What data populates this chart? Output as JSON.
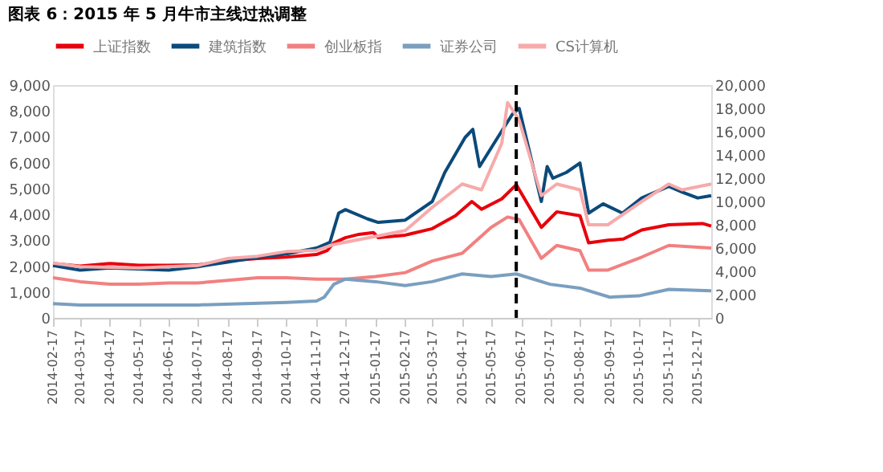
{
  "chart_data": {
    "type": "line",
    "title": "图表 6：2015 年 5 月牛市主线过热调整",
    "ylim": [
      0,
      9000
    ],
    "yticks": [
      0,
      {
        "value": 1000,
        "label": "1,000"
      },
      {
        "value": 2000,
        "label": "2,000"
      },
      {
        "value": 3000,
        "label": "3,000"
      },
      {
        "value": 4000,
        "label": "4,000"
      },
      {
        "value": 5000,
        "label": "5,000"
      },
      {
        "value": 6000,
        "label": "6,000"
      },
      {
        "value": 7000,
        "label": "7,000"
      },
      {
        "value": 8000,
        "label": "8,000"
      },
      {
        "value": 9000,
        "label": "9,000"
      }
    ],
    "y2lim": [
      0,
      20000
    ],
    "y2ticks": [
      0,
      {
        "value": 2000,
        "label": "2,000"
      },
      {
        "value": 4000,
        "label": "4,000"
      },
      {
        "value": 6000,
        "label": "6,000"
      },
      {
        "value": 8000,
        "label": "8,000"
      },
      {
        "value": 10000,
        "label": "10,000"
      },
      {
        "value": 12000,
        "label": "12,000"
      },
      {
        "value": 14000,
        "label": "14,000"
      },
      {
        "value": 16000,
        "label": "16,000"
      },
      {
        "value": 18000,
        "label": "18,000"
      },
      {
        "value": 20000,
        "label": "20,000"
      }
    ],
    "xlim": [
      "2014-02-17",
      "2015-12-31"
    ],
    "xticks": [
      "2014-02-17",
      "2014-03-17",
      "2014-04-17",
      "2014-05-17",
      "2014-06-17",
      "2014-07-17",
      "2014-08-17",
      "2014-09-17",
      "2014-10-17",
      "2014-11-17",
      "2014-12-17",
      "2015-01-17",
      "2015-02-17",
      "2015-03-17",
      "2015-04-17",
      "2015-05-17",
      "2015-06-17",
      "2015-07-17",
      "2015-08-17",
      "2015-09-17",
      "2015-10-17",
      "2015-11-17",
      "2015-12-17"
    ],
    "legend": "top",
    "grid": false,
    "marker": "none",
    "line_style": "solid",
    "ref_lines": [
      {
        "axis": "x",
        "value": "2015-06-12",
        "line_style": "dashed",
        "color": "#000000"
      }
    ],
    "series": [
      {
        "name": "上证指数",
        "color": "#e8000b",
        "x": [
          "2014-02-17",
          "2014-03-17",
          "2014-04-17",
          "2014-05-17",
          "2014-06-17",
          "2014-07-17",
          "2014-08-17",
          "2014-09-17",
          "2014-10-17",
          "2014-11-17",
          "2014-11-28",
          "2014-12-05",
          "2014-12-17",
          "2014-12-31",
          "2015-01-15",
          "2015-01-20",
          "2015-02-17",
          "2015-03-17",
          "2015-04-10",
          "2015-04-27",
          "2015-05-07",
          "2015-05-28",
          "2015-06-12",
          "2015-07-08",
          "2015-07-24",
          "2015-08-17",
          "2015-08-26",
          "2015-09-15",
          "2015-10-01",
          "2015-10-20",
          "2015-11-17",
          "2015-12-22",
          "2015-12-31"
        ],
        "values": [
          2100,
          2000,
          2100,
          2030,
          2030,
          2050,
          2200,
          2300,
          2350,
          2450,
          2600,
          2900,
          3100,
          3230,
          3300,
          3100,
          3200,
          3450,
          3950,
          4500,
          4200,
          4600,
          5150,
          3500,
          4100,
          3950,
          2900,
          3000,
          3050,
          3400,
          3600,
          3650,
          3550
        ]
      },
      {
        "name": "建筑指数",
        "color": "#0b4a7a",
        "axis": "y2",
        "x": [
          "2014-02-17",
          "2014-03-17",
          "2014-04-17",
          "2014-06-17",
          "2014-07-17",
          "2014-08-17",
          "2014-09-17",
          "2014-10-17",
          "2014-11-17",
          "2014-12-01",
          "2014-12-10",
          "2014-12-17",
          "2015-01-09",
          "2015-01-20",
          "2015-02-17",
          "2015-03-17",
          "2015-03-30",
          "2015-04-20",
          "2015-04-28",
          "2015-05-05",
          "2015-05-20",
          "2015-06-08",
          "2015-06-15",
          "2015-07-08",
          "2015-07-14",
          "2015-07-20",
          "2015-08-03",
          "2015-08-17",
          "2015-08-26",
          "2015-09-10",
          "2015-09-30",
          "2015-10-20",
          "2015-11-17",
          "2015-12-01",
          "2015-12-17",
          "2015-12-31"
        ],
        "values": [
          4500,
          4100,
          4300,
          4100,
          4400,
          4800,
          5200,
          5500,
          6000,
          6500,
          9000,
          9300,
          8500,
          8200,
          8400,
          10000,
          12500,
          15500,
          16200,
          13000,
          15000,
          17500,
          18000,
          10000,
          13000,
          12000,
          12500,
          13300,
          9000,
          9800,
          9000,
          10300,
          11300,
          10800,
          10300,
          10500
        ]
      },
      {
        "name": "创业板指",
        "color": "#f28080",
        "x": [
          "2014-02-17",
          "2014-03-17",
          "2014-04-17",
          "2014-05-17",
          "2014-06-17",
          "2014-07-17",
          "2014-08-17",
          "2014-09-17",
          "2014-10-17",
          "2014-11-17",
          "2014-12-17",
          "2015-01-17",
          "2015-02-17",
          "2015-03-17",
          "2015-04-17",
          "2015-05-17",
          "2015-06-03",
          "2015-06-15",
          "2015-07-08",
          "2015-07-24",
          "2015-08-17",
          "2015-08-26",
          "2015-09-15",
          "2015-10-20",
          "2015-11-17",
          "2015-12-31"
        ],
        "values": [
          1550,
          1400,
          1300,
          1300,
          1350,
          1350,
          1450,
          1550,
          1550,
          1500,
          1500,
          1600,
          1750,
          2200,
          2500,
          3500,
          3900,
          3800,
          2300,
          2800,
          2600,
          1850,
          1850,
          2350,
          2800,
          2700
        ]
      },
      {
        "name": "证券公司",
        "color": "#7a9fbf",
        "x": [
          "2014-02-17",
          "2014-03-17",
          "2014-07-17",
          "2014-10-17",
          "2014-11-17",
          "2014-11-25",
          "2014-12-05",
          "2014-12-17",
          "2015-01-17",
          "2015-02-17",
          "2015-03-17",
          "2015-04-17",
          "2015-05-17",
          "2015-06-12",
          "2015-07-17",
          "2015-08-17",
          "2015-09-17",
          "2015-10-17",
          "2015-11-17",
          "2015-12-31"
        ],
        "values": [
          550,
          500,
          500,
          600,
          650,
          800,
          1300,
          1500,
          1400,
          1250,
          1400,
          1700,
          1600,
          1700,
          1300,
          1150,
          800,
          850,
          1100,
          1050
        ]
      },
      {
        "name": "CS计算机",
        "color": "#f7aaaa",
        "axis": "y2",
        "x": [
          "2014-02-17",
          "2014-03-17",
          "2014-05-17",
          "2014-07-17",
          "2014-08-17",
          "2014-09-17",
          "2014-10-17",
          "2014-11-17",
          "2014-12-05",
          "2014-12-17",
          "2015-01-17",
          "2015-02-17",
          "2015-03-17",
          "2015-04-17",
          "2015-05-07",
          "2015-05-28",
          "2015-06-03",
          "2015-06-15",
          "2015-07-08",
          "2015-07-24",
          "2015-08-17",
          "2015-08-26",
          "2015-09-15",
          "2015-10-20",
          "2015-11-17",
          "2015-12-01",
          "2015-12-31"
        ],
        "values": [
          4700,
          4400,
          4300,
          4500,
          5100,
          5300,
          5700,
          5800,
          6300,
          6500,
          7000,
          7500,
          9500,
          11500,
          11000,
          15000,
          18500,
          17000,
          10500,
          11500,
          11000,
          8000,
          8000,
          10000,
          11500,
          11000,
          11500
        ]
      }
    ]
  }
}
